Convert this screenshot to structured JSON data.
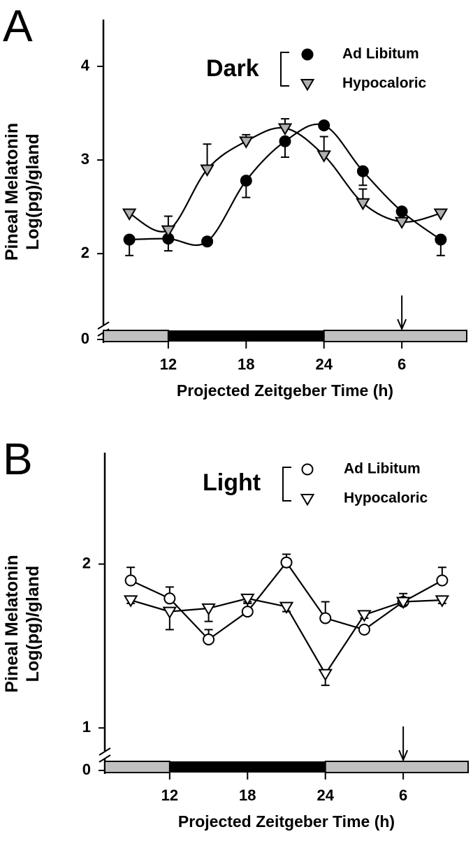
{
  "chart_data": [
    {
      "type": "line",
      "panel": "A",
      "condition": "Dark",
      "line": "smooth",
      "ylabel": [
        "Pineal Melatonin",
        "Log(pg)/gland"
      ],
      "xlabel": "Projected Zeitgeber Time (h)",
      "x": [
        9,
        12,
        15,
        18,
        21,
        24,
        27,
        30,
        33
      ],
      "xlim": [
        7,
        35
      ],
      "xticks": [
        12,
        18,
        24,
        {
          "value": 30,
          "label": "6"
        }
      ],
      "ylim": [
        1.24,
        4.5
      ],
      "yticks": [
        0,
        2,
        3,
        4
      ],
      "axis_break": true,
      "dark_phase": [
        12,
        24
      ],
      "arrow_x": 30,
      "series": [
        {
          "name": "Ad Libitum",
          "marker": "circle",
          "color": "#000000",
          "error_direction": "down",
          "values": [
            2.15,
            2.16,
            2.13,
            2.78,
            3.2,
            3.37,
            2.88,
            2.45,
            2.15
          ],
          "errors": [
            0.17,
            0.13,
            0.03,
            0.18,
            0.17,
            0.03,
            0.15,
            0.03,
            0.17
          ]
        },
        {
          "name": "Hypocaloric",
          "marker": "triangle",
          "color": "#b0b0b0",
          "error_direction": "up",
          "values": [
            2.43,
            2.25,
            2.9,
            3.2,
            3.34,
            3.05,
            2.54,
            2.34,
            2.43
          ],
          "errors": [
            0.03,
            0.15,
            0.27,
            0.07,
            0.1,
            0.2,
            0.15,
            0.03,
            0.03
          ]
        }
      ]
    },
    {
      "type": "line",
      "panel": "B",
      "condition": "Light",
      "line": "straight",
      "ylabel": [
        "Pineal Melatonin",
        "Log(pg)/gland"
      ],
      "xlabel": "Projected Zeitgeber Time (h)",
      "x": [
        9,
        12,
        15,
        18,
        21,
        24,
        27,
        30,
        33
      ],
      "xlim": [
        7,
        35
      ],
      "xticks": [
        12,
        18,
        24,
        {
          "value": 30,
          "label": "6"
        }
      ],
      "ylim": [
        0.86,
        2.68
      ],
      "yticks": [
        0,
        1,
        2
      ],
      "axis_break": true,
      "dark_phase": [
        12,
        24
      ],
      "arrow_x": 30,
      "series": [
        {
          "name": "Ad Libitum",
          "marker": "circle",
          "color": "#ffffff",
          "error_direction": "up",
          "values": [
            1.9,
            1.79,
            1.54,
            1.71,
            2.01,
            1.67,
            1.6,
            1.77,
            1.9
          ],
          "errors": [
            0.08,
            0.07,
            0.06,
            0.06,
            0.05,
            0.1,
            0.02,
            0.05,
            0.08
          ]
        },
        {
          "name": "Hypocaloric",
          "marker": "triangle",
          "color": "#ffffff",
          "error_direction": "down",
          "values": [
            1.78,
            1.71,
            1.73,
            1.79,
            1.74,
            1.33,
            1.69,
            1.77,
            1.78
          ],
          "errors": [
            0.02,
            0.11,
            0.08,
            0.03,
            0.03,
            0.07,
            0.02,
            0.02,
            0.02
          ]
        }
      ]
    }
  ]
}
